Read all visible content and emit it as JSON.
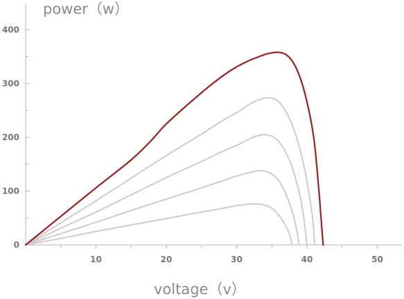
{
  "chart_data": {
    "type": "line",
    "xlabel": "voltage（v）",
    "ylabel": "power（w）",
    "xlim": [
      0,
      53.5
    ],
    "ylim": [
      0,
      445
    ],
    "x_ticks": [
      10,
      20,
      30,
      40,
      50
    ],
    "y_ticks": [
      0,
      100,
      200,
      300,
      400
    ],
    "grid": false,
    "legend": "none",
    "colors": {
      "highlight": "#a01e1e",
      "muted": "#cccccc",
      "axis": "#b5b5b5",
      "text": "#777777"
    },
    "series": [
      {
        "highlight": false,
        "points": [
          [
            0,
            0
          ],
          [
            5,
            12
          ],
          [
            10,
            25
          ],
          [
            15,
            37
          ],
          [
            20,
            49
          ],
          [
            25,
            61
          ],
          [
            28,
            68
          ],
          [
            30,
            73
          ],
          [
            32,
            76
          ],
          [
            33,
            76
          ],
          [
            34,
            74
          ],
          [
            35,
            68
          ],
          [
            36,
            55
          ],
          [
            37,
            35
          ],
          [
            37.5,
            20
          ],
          [
            37.9,
            0
          ]
        ]
      },
      {
        "highlight": false,
        "points": [
          [
            0,
            0
          ],
          [
            5,
            21
          ],
          [
            10,
            42
          ],
          [
            15,
            64
          ],
          [
            20,
            85
          ],
          [
            25,
            106
          ],
          [
            28,
            119
          ],
          [
            30,
            128
          ],
          [
            32,
            135
          ],
          [
            33,
            138
          ],
          [
            34,
            137
          ],
          [
            35,
            132
          ],
          [
            36,
            119
          ],
          [
            37,
            95
          ],
          [
            38,
            58
          ],
          [
            38.5,
            30
          ],
          [
            38.9,
            0
          ]
        ]
      },
      {
        "highlight": false,
        "points": [
          [
            0,
            0
          ],
          [
            5,
            31
          ],
          [
            10,
            61
          ],
          [
            15,
            93
          ],
          [
            20,
            125
          ],
          [
            25,
            155
          ],
          [
            28,
            174
          ],
          [
            30,
            185
          ],
          [
            32,
            198
          ],
          [
            33,
            203
          ],
          [
            34,
            205
          ],
          [
            35,
            202
          ],
          [
            36,
            192
          ],
          [
            37,
            172
          ],
          [
            38,
            140
          ],
          [
            39,
            92
          ],
          [
            39.5,
            55
          ],
          [
            40,
            0
          ]
        ]
      },
      {
        "highlight": false,
        "points": [
          [
            0,
            0
          ],
          [
            5,
            41
          ],
          [
            10,
            82
          ],
          [
            15,
            124
          ],
          [
            20,
            166
          ],
          [
            25,
            206
          ],
          [
            28,
            231
          ],
          [
            30,
            246
          ],
          [
            32,
            263
          ],
          [
            33,
            269
          ],
          [
            34,
            273
          ],
          [
            35,
            273
          ],
          [
            36,
            266
          ],
          [
            37,
            248
          ],
          [
            38,
            220
          ],
          [
            39,
            178
          ],
          [
            40,
            118
          ],
          [
            40.8,
            50
          ],
          [
            41.1,
            0
          ]
        ]
      },
      {
        "highlight": true,
        "points": [
          [
            0,
            0
          ],
          [
            5,
            53
          ],
          [
            10,
            106
          ],
          [
            15,
            158
          ],
          [
            18,
            196
          ],
          [
            20,
            225
          ],
          [
            25,
            283
          ],
          [
            28,
            314
          ],
          [
            30,
            331
          ],
          [
            32,
            344
          ],
          [
            33,
            349
          ],
          [
            34,
            354
          ],
          [
            35,
            357
          ],
          [
            36,
            358
          ],
          [
            37,
            354
          ],
          [
            38,
            340
          ],
          [
            39,
            312
          ],
          [
            40,
            266
          ],
          [
            41,
            196
          ],
          [
            41.7,
            100
          ],
          [
            42,
            50
          ],
          [
            42.3,
            0
          ]
        ]
      }
    ]
  }
}
